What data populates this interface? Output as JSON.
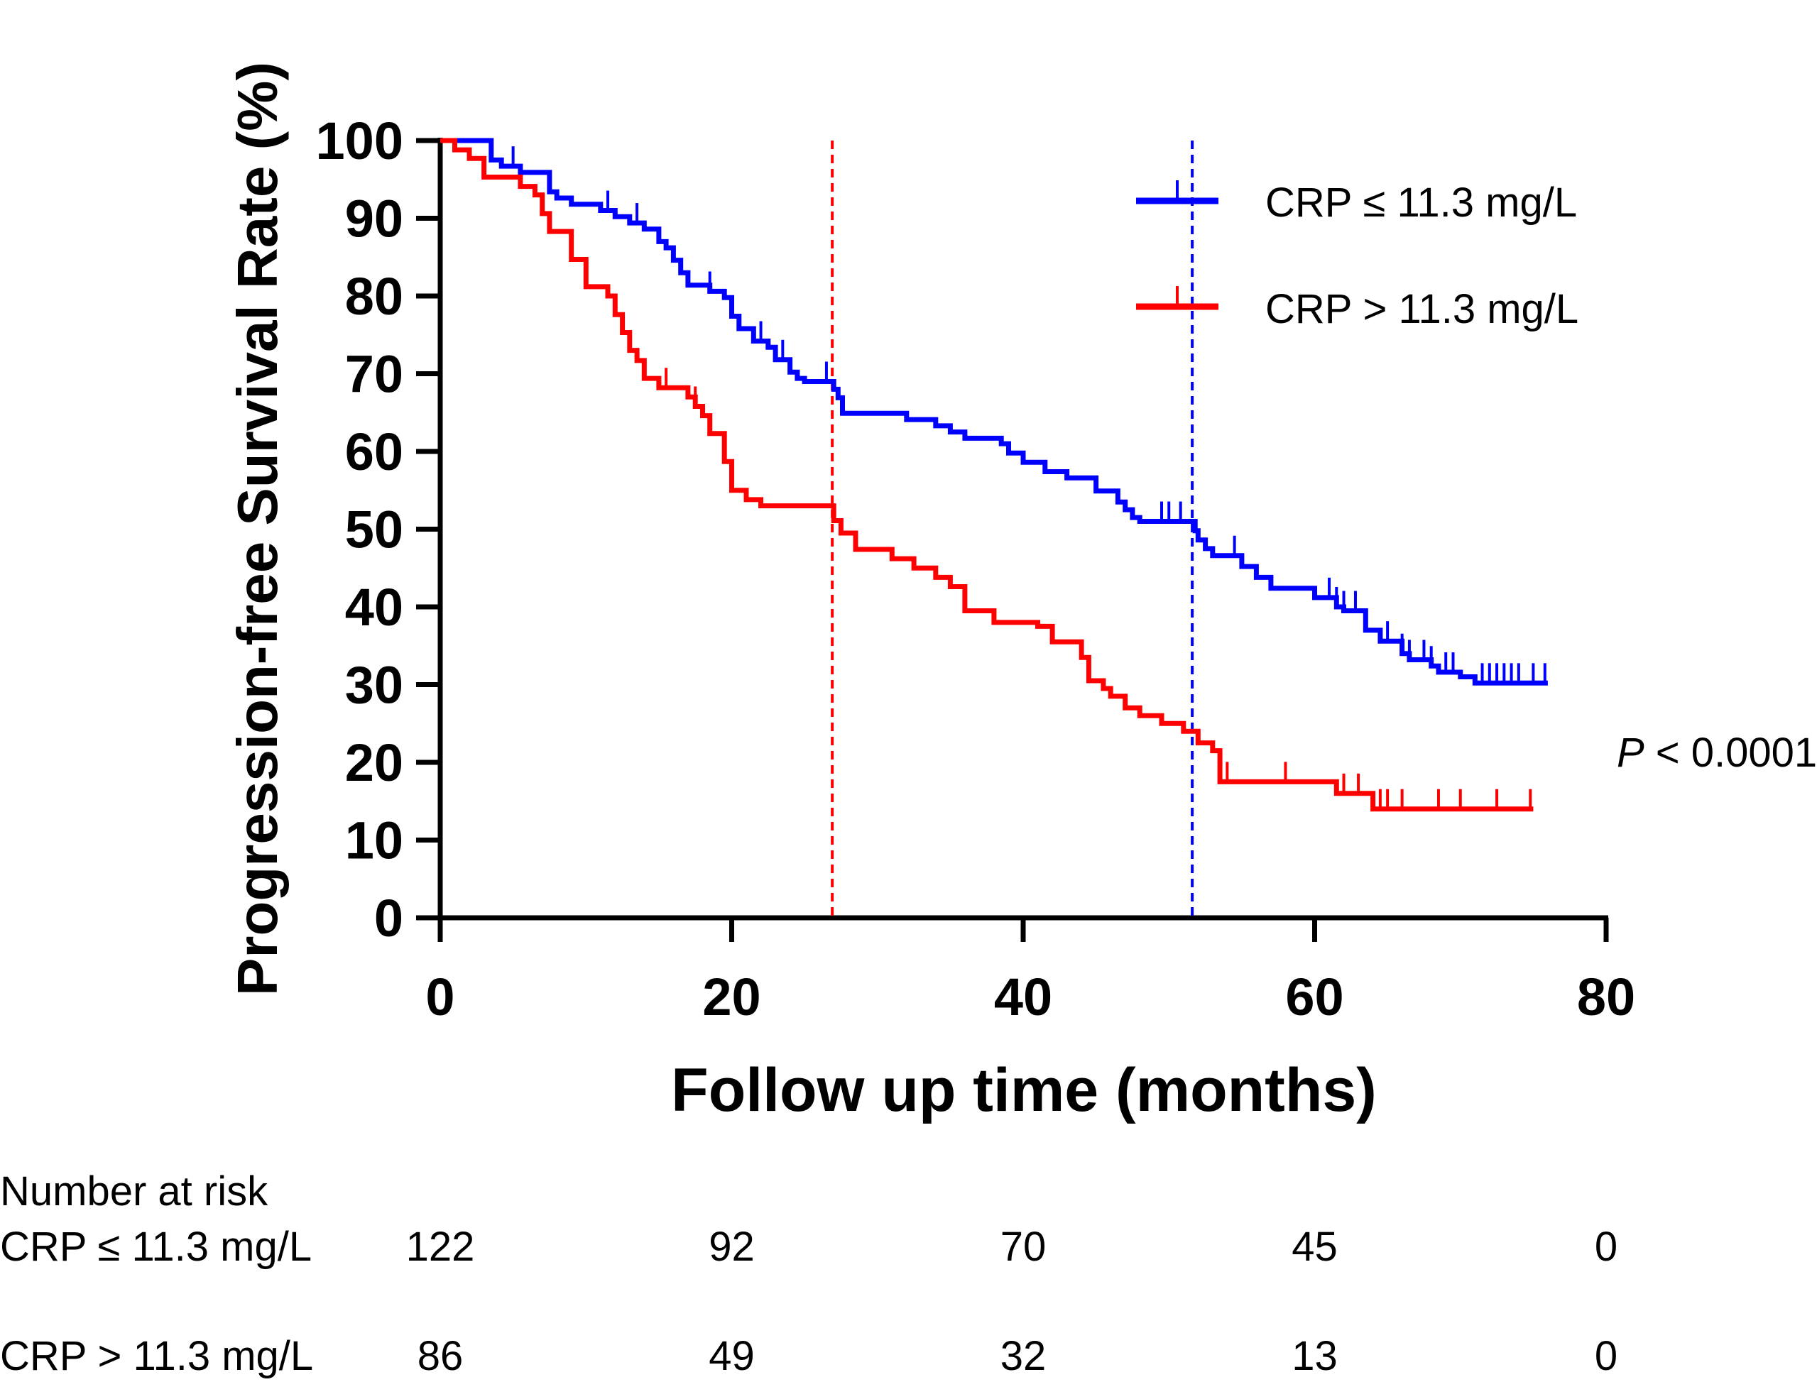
{
  "chart_data": {
    "type": "line",
    "subtype": "kaplan-meier",
    "xlabel": "Follow up time (months)",
    "ylabel": "Progression-free Survival Rate (%)",
    "xlim": [
      0,
      80
    ],
    "ylim": [
      0,
      100
    ],
    "xticks": [
      0,
      20,
      40,
      60,
      80
    ],
    "yticks": [
      0,
      10,
      20,
      30,
      40,
      50,
      60,
      70,
      80,
      90,
      100
    ],
    "median_lines": [
      {
        "series": "CRP > 11.3 mg/L",
        "x": 26.9,
        "color": "#ff0000"
      },
      {
        "series": "CRP ≤ 11.3 mg/L",
        "x": 51.6,
        "color": "#0000ff"
      }
    ],
    "p_value": {
      "prefix": "P",
      "text": " < 0.0001"
    },
    "series": [
      {
        "name": "CRP ≤ 11.3 mg/L",
        "color": "#0000ff",
        "x": [
          0,
          3.5,
          4.2,
          5.5,
          7.5,
          8.0,
          9.0,
          11.0,
          12.0,
          13.0,
          14.0,
          15.0,
          15.5,
          16.0,
          16.5,
          17.0,
          18.5,
          19.5,
          20.0,
          20.5,
          21.5,
          22.5,
          23.0,
          24.0,
          24.5,
          25.0,
          27.0,
          27.3,
          27.6,
          32.0,
          34.0,
          35.0,
          36.0,
          38.5,
          39.0,
          40.0,
          41.5,
          43.0,
          45.0,
          46.5,
          47.0,
          47.5,
          48.0,
          49.0,
          51.0,
          51.8,
          52.0,
          52.5,
          53.0,
          55.0,
          56.0,
          57.0,
          60.0,
          61.5,
          62.0,
          63.5,
          64.5,
          66.0,
          66.5,
          68.0,
          68.5,
          70.0,
          71.0,
          76.0
        ],
        "y": [
          100,
          97.5,
          96.7,
          95.9,
          93.4,
          92.6,
          91.8,
          91.0,
          90.2,
          89.4,
          88.6,
          87.0,
          86.2,
          84.6,
          83.0,
          81.4,
          80.6,
          79.8,
          77.4,
          75.8,
          74.2,
          73.4,
          71.8,
          70.2,
          69.4,
          69.0,
          68.0,
          66.9,
          64.9,
          64.1,
          63.3,
          62.5,
          61.7,
          61.0,
          59.8,
          58.6,
          57.4,
          56.6,
          54.9,
          53.5,
          52.5,
          51.5,
          51.0,
          51.0,
          51.0,
          49.8,
          48.6,
          47.5,
          46.6,
          45.2,
          43.8,
          42.4,
          41.2,
          40.0,
          39.5,
          37.0,
          35.6,
          34.0,
          33.2,
          32.4,
          31.6,
          31.0,
          30.2,
          30.2
        ],
        "censored_x": [
          5.0,
          11.5,
          13.5,
          18.5,
          22.0,
          23.5,
          26.5,
          49.5,
          50.0,
          50.8,
          54.5,
          61.0,
          61.5,
          62.0,
          62.8,
          63.5,
          65.0,
          66.0,
          66.5,
          67.5,
          68.0,
          69.0,
          69.5,
          71.5,
          72.0,
          72.5,
          73.0,
          73.5,
          74.0,
          75.0,
          75.8
        ]
      },
      {
        "name": "CRP > 11.3 mg/L",
        "color": "#ff0000",
        "x": [
          0,
          1.0,
          2.0,
          3.0,
          5.5,
          6.5,
          7.0,
          7.5,
          9.0,
          10.0,
          11.5,
          12.0,
          12.5,
          13.0,
          13.5,
          14.0,
          15.0,
          17.0,
          17.5,
          18.0,
          18.5,
          19.5,
          20.0,
          21.0,
          22.0,
          26.5,
          27.0,
          27.5,
          28.5,
          31.0,
          32.5,
          34.0,
          35.0,
          36.0,
          38.0,
          41.0,
          42.0,
          44.0,
          44.5,
          45.5,
          46.0,
          47.0,
          48.0,
          49.5,
          51.0,
          52.0,
          53.0,
          53.5,
          60.0,
          61.5,
          64.0,
          75.0
        ],
        "y": [
          100,
          98.8,
          97.7,
          95.3,
          94.1,
          93.0,
          90.6,
          88.3,
          84.7,
          81.2,
          80.0,
          77.6,
          75.3,
          73.0,
          71.7,
          69.4,
          68.2,
          67.0,
          65.8,
          64.6,
          62.3,
          58.7,
          55.0,
          53.8,
          53.0,
          53.0,
          51.1,
          49.5,
          47.4,
          46.2,
          45.0,
          43.8,
          42.6,
          39.5,
          38.0,
          37.5,
          35.5,
          33.5,
          30.5,
          29.5,
          28.5,
          27.0,
          26.0,
          25.0,
          24.0,
          22.5,
          21.5,
          17.5,
          17.5,
          16.0,
          14.0,
          14.0
        ],
        "censored_x": [
          15.5,
          17.5,
          54.0,
          58.0,
          62.0,
          63.0,
          64.5,
          65.0,
          66.0,
          68.5,
          70.0,
          72.5,
          74.8
        ]
      }
    ],
    "legend": {
      "position": "top-right",
      "entries": [
        "CRP ≤ 11.3 mg/L",
        "CRP > 11.3 mg/L"
      ]
    },
    "risk_table": {
      "title": "Number at risk",
      "times": [
        0,
        20,
        40,
        60,
        80
      ],
      "rows": [
        {
          "label": "CRP ≤ 11.3 mg/L",
          "values": [
            "122",
            "92",
            "70",
            "45",
            "0"
          ]
        },
        {
          "label": "CRP > 11.3 mg/L",
          "values": [
            "86",
            "49",
            "32",
            "13",
            "0"
          ]
        }
      ]
    }
  }
}
